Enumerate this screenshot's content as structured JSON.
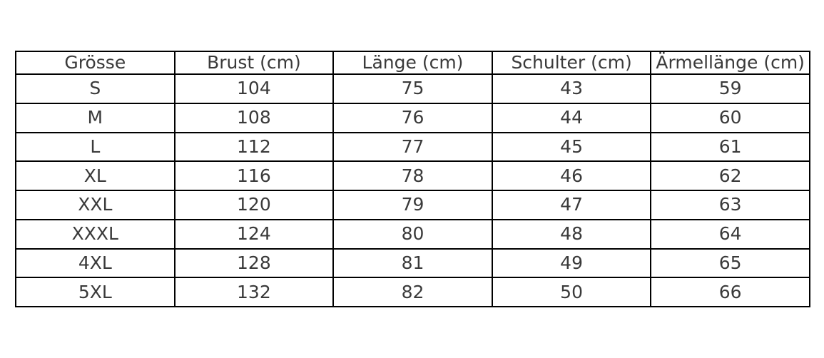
{
  "page": {
    "background": "#ffffff",
    "border_color": "#000000",
    "text_color": "#3a3a3a"
  },
  "chart_data": {
    "type": "table",
    "title": "",
    "columns": [
      "Grösse",
      "Brust (cm)",
      "Länge (cm)",
      "Schulter (cm)",
      "Ärmellänge (cm)"
    ],
    "rows": [
      [
        "S",
        "104",
        "75",
        "43",
        "59"
      ],
      [
        "M",
        "108",
        "76",
        "44",
        "60"
      ],
      [
        "L",
        "112",
        "77",
        "45",
        "61"
      ],
      [
        "XL",
        "116",
        "78",
        "46",
        "62"
      ],
      [
        "XXL",
        "120",
        "79",
        "47",
        "63"
      ],
      [
        "XXXL",
        "124",
        "80",
        "48",
        "64"
      ],
      [
        "4XL",
        "128",
        "81",
        "49",
        "65"
      ],
      [
        "5XL",
        "132",
        "82",
        "50",
        "66"
      ]
    ]
  }
}
